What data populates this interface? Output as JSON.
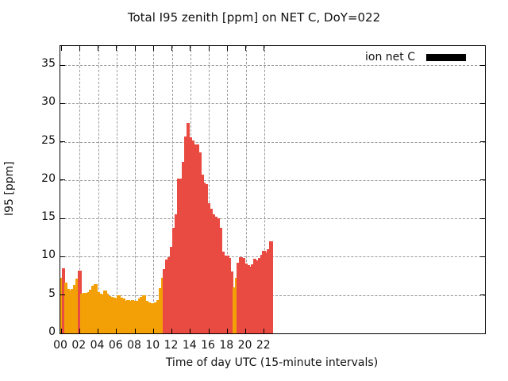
{
  "title": "Total I95 zenith [ppm] on NET C, DoY=022",
  "chart_data": {
    "type": "bar",
    "title": "Total I95 zenith [ppm] on NET C, DoY=022",
    "xlabel": "Time of day UTC (15-minute intervals)",
    "ylabel": "I95 [ppm]",
    "ylim": [
      0,
      37.5
    ],
    "y_ticks": [
      0,
      5,
      10,
      15,
      20,
      25,
      30,
      35
    ],
    "x_tick_labels": [
      "00",
      "02",
      "04",
      "06",
      "08",
      "10",
      "12",
      "14",
      "16",
      "18",
      "20",
      "22"
    ],
    "x_hours_per_tick": 2,
    "grid": true,
    "legend": {
      "label": "ion net C",
      "swatch_color": "#000000",
      "position": "top-right-inside"
    },
    "colors": {
      "bar_low": "#F3A007",
      "bar_high": "#E94B42",
      "color_threshold": 8
    },
    "interval_minutes": 15,
    "x_times": [
      "00:00",
      "00:15",
      "00:30",
      "00:45",
      "01:00",
      "01:15",
      "01:30",
      "01:45",
      "02:00",
      "02:15",
      "02:30",
      "02:45",
      "03:00",
      "03:15",
      "03:30",
      "03:45",
      "04:00",
      "04:15",
      "04:30",
      "04:45",
      "05:00",
      "05:15",
      "05:30",
      "05:45",
      "06:00",
      "06:15",
      "06:30",
      "06:45",
      "07:00",
      "07:15",
      "07:30",
      "07:45",
      "08:00",
      "08:15",
      "08:30",
      "08:45",
      "09:00",
      "09:15",
      "09:30",
      "09:45",
      "10:00",
      "10:15",
      "10:30",
      "10:45",
      "11:00",
      "11:15",
      "11:30",
      "11:45",
      "12:00",
      "12:15",
      "12:30",
      "12:45",
      "13:00",
      "13:15",
      "13:30",
      "13:45",
      "14:00",
      "14:15",
      "14:30",
      "14:45",
      "15:00",
      "15:15",
      "15:30",
      "15:45",
      "16:00",
      "16:15",
      "16:30",
      "16:45",
      "17:00",
      "17:15",
      "17:30",
      "17:45",
      "18:00",
      "18:15",
      "18:30",
      "18:45",
      "19:00",
      "19:15",
      "19:30",
      "19:45",
      "20:00",
      "20:15",
      "20:30",
      "20:45",
      "21:00",
      "21:15",
      "21:30",
      "21:45",
      "22:00",
      "22:15",
      "22:30",
      "22:45"
    ],
    "values": [
      7.3,
      8.5,
      6.6,
      5.8,
      5.6,
      5.8,
      6.3,
      7.2,
      8.2,
      5.2,
      5.3,
      5.3,
      5.4,
      5.7,
      6.2,
      6.4,
      5.4,
      5.2,
      5.1,
      5.6,
      5.2,
      4.9,
      4.8,
      4.7,
      4.6,
      5.0,
      4.7,
      4.6,
      4.3,
      4.4,
      4.3,
      4.4,
      4.3,
      4.3,
      4.6,
      4.8,
      5.0,
      4.2,
      4.0,
      3.9,
      3.9,
      4.0,
      4.4,
      5.9,
      7.3,
      8.4,
      9.6,
      9.9,
      11.3,
      13.8,
      15.5,
      20.2,
      20.2,
      22.4,
      25.7,
      27.5,
      25.6,
      25.2,
      24.7,
      24.7,
      23.6,
      20.7,
      19.7,
      19.5,
      17.0,
      16.3,
      15.5,
      15.2,
      15.0,
      13.8,
      10.7,
      10.2,
      10.2,
      9.8,
      8.1,
      6.0,
      7.3,
      9.2,
      9.9,
      9.8,
      9.1,
      8.9,
      8.7,
      9.0,
      9.7,
      9.5,
      9.8,
      10.3,
      10.8,
      10.6,
      11.0,
      12.0
    ]
  }
}
